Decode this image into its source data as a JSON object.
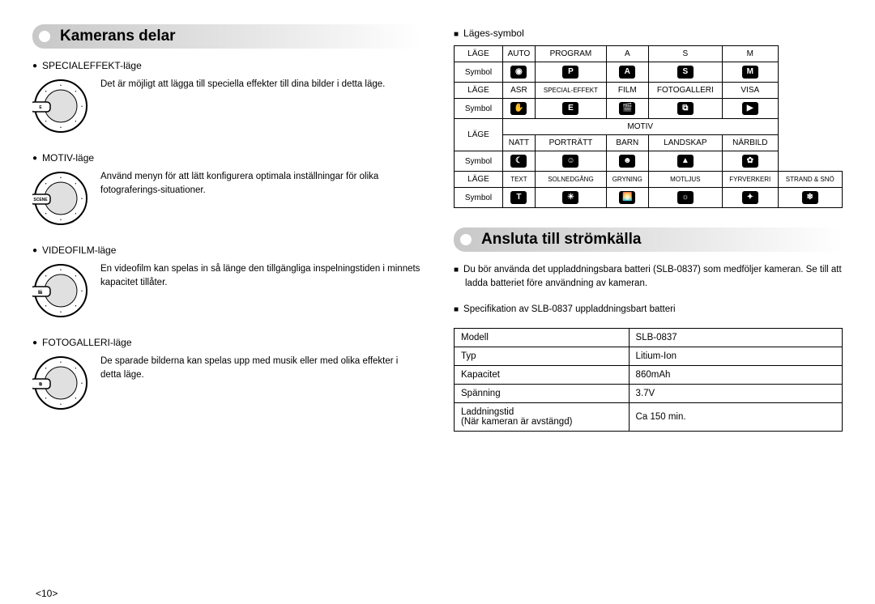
{
  "page_number": "<10>",
  "left": {
    "heading": "Kamerans delar",
    "modes": [
      {
        "title": "SPECIALEFFEKT-läge",
        "desc": "Det är möjligt att lägga till speciella effekter till dina bilder i detta läge."
      },
      {
        "title": "MOTIV-läge",
        "desc": "Använd menyn för att lätt konfigurera optimala inställningar för olika fotograferings-situationer."
      },
      {
        "title": "VIDEOFILM-läge",
        "desc": "En videofilm kan spelas in så länge den tillgängliga inspelningstiden i minnets kapacitet tillåter."
      },
      {
        "title": "FOTOGALLERI-läge",
        "desc": "De sparade bilderna kan spelas upp med musik eller med olika effekter i detta läge."
      }
    ]
  },
  "right": {
    "symbol_head": "Läges-symbol",
    "table": {
      "rows": [
        {
          "label": "LÄGE",
          "cells": [
            "AUTO",
            "PROGRAM",
            "A",
            "S",
            "M"
          ]
        },
        {
          "label": "Symbol",
          "icons": [
            "◉",
            "P",
            "A",
            "S",
            "M"
          ]
        },
        {
          "label": "LÄGE",
          "cells": [
            "ASR",
            "SPECIAL-EFFEKT",
            "FILM",
            "FOTOGALLERI",
            "VISA"
          ]
        },
        {
          "label": "Symbol",
          "icons": [
            "✋",
            "E",
            "🎬",
            "⧉",
            "▶"
          ]
        },
        {
          "label_rowspan": "LÄGE",
          "merged": "MOTIV",
          "cells": [
            "NATT",
            "PORTRÄTT",
            "BARN",
            "LANDSKAP",
            "NÄRBILD"
          ]
        },
        {
          "label": "Symbol",
          "icons": [
            "☾",
            "☺",
            "☻",
            "▲",
            "✿"
          ]
        },
        {
          "label": "LÄGE",
          "cells": [
            "TEXT",
            "SOLNEDGÅNG",
            "GRYNING",
            "MOTLJUS",
            "FYRVERKERI",
            "STRAND & SNÖ"
          ],
          "small": true
        },
        {
          "label": "Symbol",
          "icons": [
            "T",
            "☀",
            "🌅",
            "☼",
            "✦",
            "❄"
          ]
        }
      ]
    },
    "heading2": "Ansluta till strömkälla",
    "note1": "Du bör använda det uppladdningsbara batteri (SLB-0837) som medföljer kameran. Se till att ladda batteriet före användning av kameran.",
    "note2": "Specifikation av SLB-0837 uppladdningsbart batteri",
    "spec": [
      [
        "Modell",
        "SLB-0837"
      ],
      [
        "Typ",
        "Litium-Ion"
      ],
      [
        "Kapacitet",
        "860mAh"
      ],
      [
        "Spänning",
        "3.7V"
      ],
      [
        "Laddningstid\n(När kameran är avstängd)",
        "Ca 150 min."
      ]
    ]
  }
}
